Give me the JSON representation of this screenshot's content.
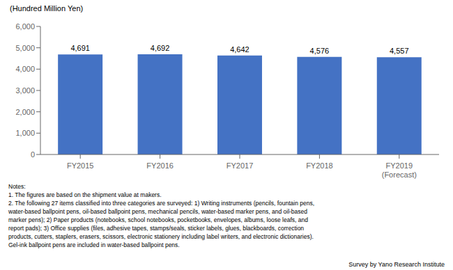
{
  "chart_data": {
    "type": "bar",
    "categories": [
      "FY2015",
      "FY2016",
      "FY2017",
      "FY2018",
      "FY2019\n(Forecast)"
    ],
    "values": [
      4691,
      4692,
      4642,
      4576,
      4557
    ],
    "value_labels": [
      "4,691",
      "4,692",
      "4,642",
      "4,576",
      "4,557"
    ],
    "data_labels": true,
    "color": "#4472C4",
    "ylabel": "(Hundred Million Yen)",
    "ylim": [
      0,
      6000
    ],
    "yticks": [
      0,
      {
        "value": 1000,
        "label": "1,000"
      },
      {
        "value": 2000,
        "label": "2,000"
      },
      {
        "value": 3000,
        "label": "3,000"
      },
      {
        "value": 4000,
        "label": "4,000"
      },
      {
        "value": 5000,
        "label": "5,000"
      },
      {
        "value": 6000,
        "label": "6,000"
      }
    ],
    "grid": false,
    "notes": [
      "Notes:",
      "1. The figures are based on the shipment value at makers.",
      "2. The following 27 items classified into three categories are surveyed: 1) Writing instruments (pencils, fountain pens,",
      "water-based ballpoint pens, oil-based ballpoint pens, mechanical pencils, water-based marker pens, and oil-based",
      "marker pens); 2) Paper products (notebooks, school notebooks, pocketbooks, envelopes, albums, loose leafs, and",
      "report pads); 3) Office supplies (files, adhesive tapes, stamps/seals, sticker labels, glues, blackboards, correction",
      "products, cutters, staplers, erasers, scissors, electronic stationery including label writers, and electronic dictionaries).",
      "Gel-ink ballpoint pens are included in water-based ballpoint pens."
    ],
    "source": "Survey by Yano Research Institute"
  }
}
